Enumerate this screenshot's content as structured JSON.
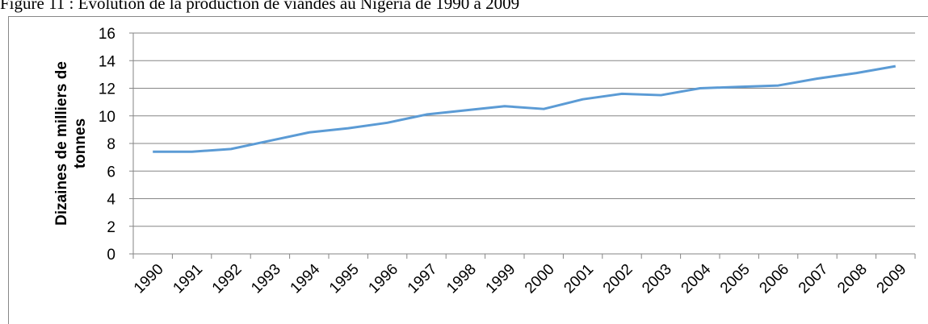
{
  "chart_data": {
    "type": "line",
    "title": "Figure 11 : Evolution de la production de viandes au Nigeria de 1990 à 2009",
    "ylabel": [
      "Dizaines de milliers de",
      "tonnes"
    ],
    "categories": [
      "1990",
      "1991",
      "1992",
      "1993",
      "1994",
      "1995",
      "1996",
      "1997",
      "1998",
      "1999",
      "2000",
      "2001",
      "2002",
      "2003",
      "2004",
      "2005",
      "2006",
      "2007",
      "2008",
      "2009"
    ],
    "values": [
      7.4,
      7.4,
      7.6,
      8.2,
      8.8,
      9.1,
      9.5,
      10.1,
      10.4,
      10.7,
      10.5,
      11.2,
      11.6,
      11.5,
      12.0,
      12.1,
      12.2,
      12.7,
      13.1,
      13.6
    ],
    "color": "#5b9bd5",
    "ylim": [
      0,
      16
    ],
    "yticks": [
      0,
      2,
      4,
      6,
      8,
      10,
      12,
      14,
      16
    ],
    "grid": true
  }
}
